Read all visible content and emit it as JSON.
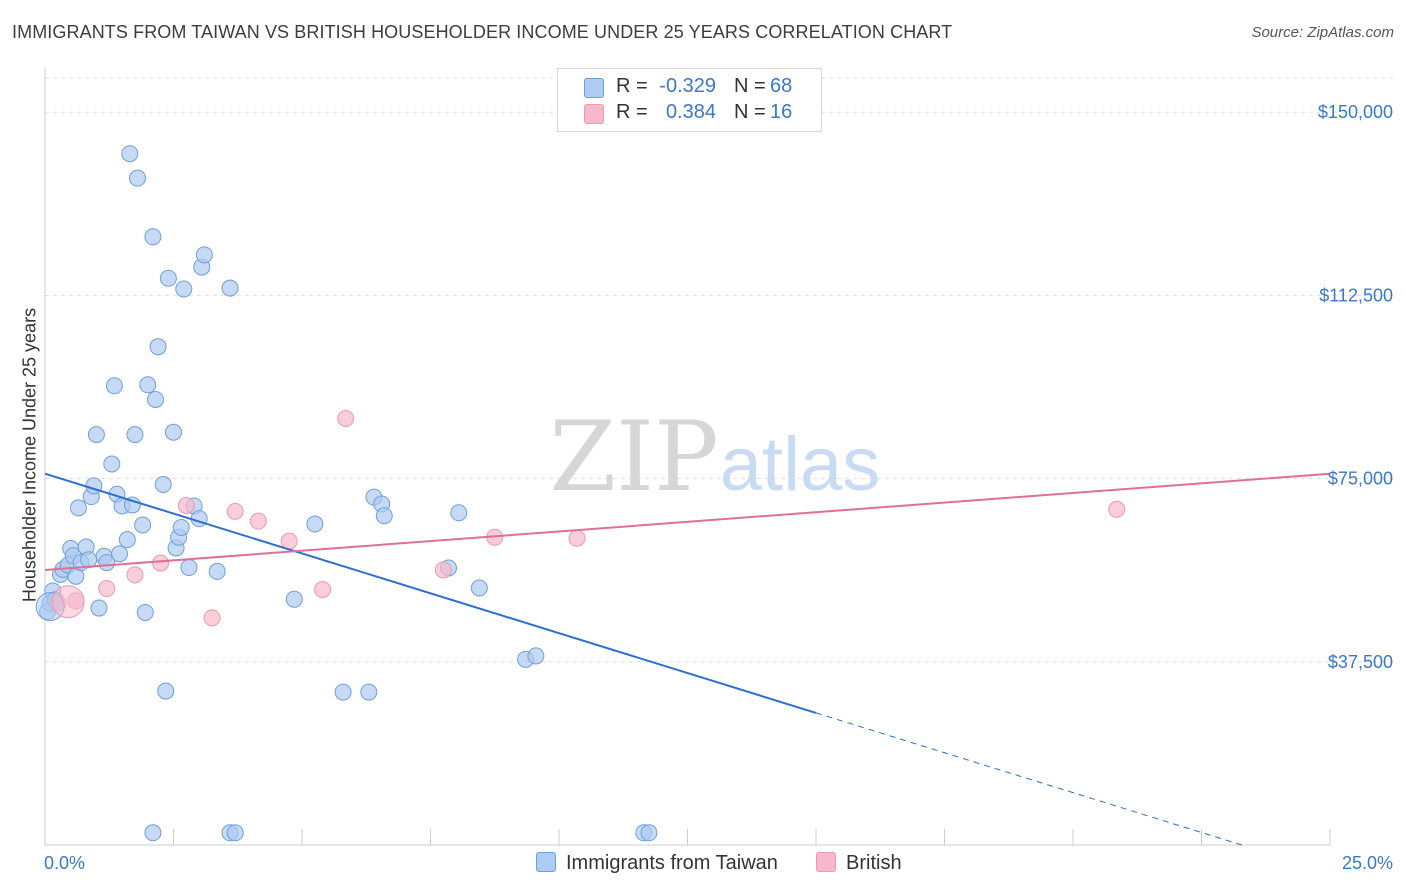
{
  "title": "IMMIGRANTS FROM TAIWAN VS BRITISH HOUSEHOLDER INCOME UNDER 25 YEARS CORRELATION CHART",
  "source": "Source: ZipAtlas.com",
  "watermark": {
    "zip": "ZIP",
    "atlas": "atlas"
  },
  "legend_top": {
    "rows": [
      {
        "r_label": "R =",
        "r_value": "-0.329",
        "n_label": "N =",
        "n_value": "68",
        "color": "#aecbf2"
      },
      {
        "r_label": "R =",
        "r_value": "0.384",
        "n_label": "N =",
        "n_value": "16",
        "color": "#f7b8cb"
      }
    ]
  },
  "legend_bottom": [
    {
      "label": "Immigrants from Taiwan",
      "color": "#aecbf2"
    },
    {
      "label": "British",
      "color": "#f7b8cb"
    }
  ],
  "colors": {
    "blue_point": "#aecbf2",
    "blue_stroke": "#6f9fd8",
    "blue_line": "#2d6fd0",
    "pink_point": "#f7b8cb",
    "pink_stroke": "#e89ab2",
    "pink_line": "#e06f98",
    "axis_text": "#3a78c9",
    "grid": "#dddddd"
  },
  "chart_data": {
    "type": "scatter",
    "title": "IMMIGRANTS FROM TAIWAN VS BRITISH HOUSEHOLDER INCOME UNDER 25 YEARS CORRELATION CHART",
    "xlabel": "",
    "ylabel": "Householder Income Under 25 years",
    "xlim": [
      0,
      25
    ],
    "ylim": [
      0,
      157000
    ],
    "x_tick_labels": [
      "0.0%",
      "25.0%"
    ],
    "y_ticks": [
      37500,
      75000,
      112500,
      150000
    ],
    "y_tick_labels": [
      "$37,500",
      "$75,000",
      "$112,500",
      "$150,000"
    ],
    "grid": true,
    "legend_position": "top-center",
    "series": [
      {
        "name": "Immigrants from Taiwan",
        "R": -0.329,
        "N": 68,
        "points": [
          [
            0.05,
            47800
          ],
          [
            0.1,
            49500
          ],
          [
            0.15,
            52000
          ],
          [
            0.2,
            50200
          ],
          [
            0.3,
            55400
          ],
          [
            0.35,
            56400
          ],
          [
            0.45,
            57300
          ],
          [
            0.5,
            60700
          ],
          [
            0.55,
            59200
          ],
          [
            0.6,
            55000
          ],
          [
            0.65,
            69000
          ],
          [
            0.7,
            57800
          ],
          [
            0.8,
            61000
          ],
          [
            0.85,
            58400
          ],
          [
            0.9,
            71300
          ],
          [
            0.95,
            73500
          ],
          [
            1.0,
            84000
          ],
          [
            1.05,
            48500
          ],
          [
            1.15,
            59100
          ],
          [
            1.2,
            57800
          ],
          [
            1.3,
            78000
          ],
          [
            1.35,
            94000
          ],
          [
            1.4,
            71800
          ],
          [
            1.45,
            59600
          ],
          [
            1.5,
            69400
          ],
          [
            1.6,
            62500
          ],
          [
            1.65,
            141500
          ],
          [
            1.7,
            69600
          ],
          [
            1.75,
            84000
          ],
          [
            1.8,
            136500
          ],
          [
            1.9,
            65500
          ],
          [
            1.95,
            47600
          ],
          [
            2.0,
            94200
          ],
          [
            2.1,
            124500
          ],
          [
            2.15,
            91200
          ],
          [
            2.2,
            102000
          ],
          [
            2.3,
            73800
          ],
          [
            2.35,
            31500
          ],
          [
            2.4,
            116000
          ],
          [
            2.5,
            84500
          ],
          [
            2.55,
            60800
          ],
          [
            2.6,
            63000
          ],
          [
            2.65,
            65000
          ],
          [
            2.7,
            113800
          ],
          [
            2.8,
            56800
          ],
          [
            2.9,
            69400
          ],
          [
            3.0,
            66800
          ],
          [
            3.05,
            118300
          ],
          [
            3.1,
            120800
          ],
          [
            3.35,
            56000
          ],
          [
            3.6,
            114000
          ],
          [
            4.85,
            50300
          ],
          [
            5.25,
            65700
          ],
          [
            5.8,
            31300
          ],
          [
            6.3,
            31300
          ],
          [
            6.4,
            71200
          ],
          [
            6.55,
            69800
          ],
          [
            6.6,
            67400
          ],
          [
            7.85,
            56700
          ],
          [
            8.05,
            68000
          ],
          [
            8.45,
            52600
          ],
          [
            9.35,
            38000
          ],
          [
            9.55,
            38700
          ],
          [
            11.65,
            2500
          ],
          [
            2.1,
            2500
          ],
          [
            3.6,
            2500
          ],
          [
            3.7,
            2500
          ],
          [
            11.75,
            2500
          ]
        ],
        "trend": {
          "x0": 0,
          "y0": 76000,
          "x1_solid": 15,
          "x1": 25,
          "y1": -5600
        }
      },
      {
        "name": "British",
        "R": 0.384,
        "N": 16,
        "points": [
          [
            0.25,
            49500
          ],
          [
            0.6,
            50000
          ],
          [
            1.2,
            52500
          ],
          [
            1.75,
            55300
          ],
          [
            2.25,
            57700
          ],
          [
            2.75,
            69500
          ],
          [
            3.25,
            46500
          ],
          [
            3.7,
            68300
          ],
          [
            4.15,
            66300
          ],
          [
            4.75,
            62200
          ],
          [
            5.4,
            52300
          ],
          [
            5.85,
            87300
          ],
          [
            7.75,
            56300
          ],
          [
            8.75,
            63000
          ],
          [
            10.35,
            62800
          ],
          [
            20.85,
            68700
          ]
        ],
        "trend": {
          "x0": 0,
          "y0": 56300,
          "x1": 25,
          "y1": 76000
        }
      }
    ]
  }
}
